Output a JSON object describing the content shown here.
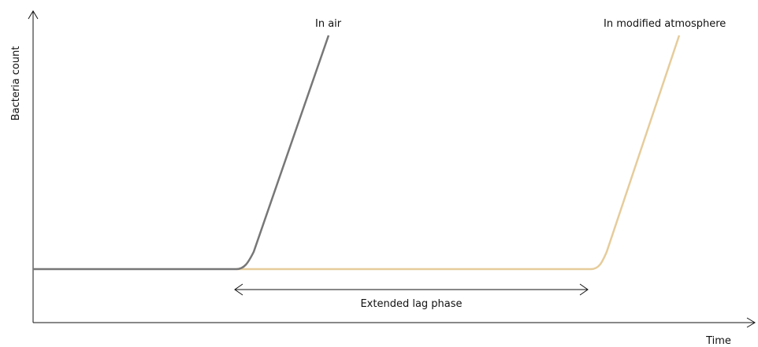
{
  "axes": {
    "y_label": "Bacteria count",
    "x_label": "Time"
  },
  "curves": [
    {
      "label": "In air"
    },
    {
      "label": "In modified atmosphere"
    }
  ],
  "annotation": "Extended lag phase"
}
